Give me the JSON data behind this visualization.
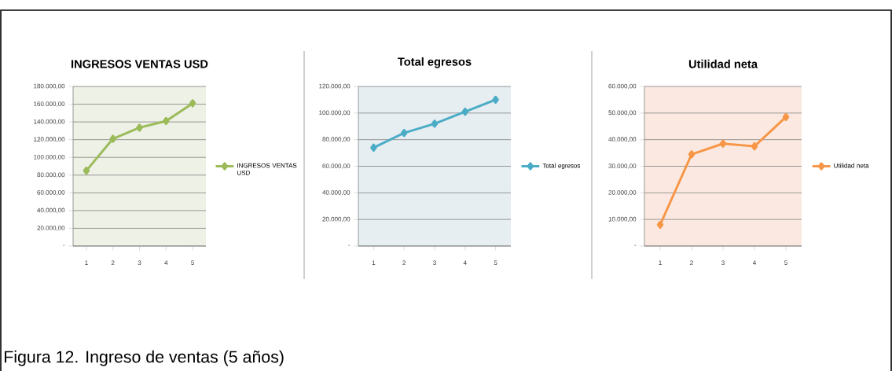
{
  "chart_data": [
    {
      "type": "line",
      "title": "INGRESOS VENTAS  USD",
      "categories": [
        "1",
        "2",
        "3",
        "4",
        "5"
      ],
      "series": [
        {
          "name": "INGRESOS VENTAS USD",
          "color": "#9bbb59",
          "values": [
            85000,
            121000,
            133500,
            141000,
            161000
          ]
        }
      ],
      "ylim": [
        0,
        180000
      ],
      "yticks": [
        {
          "value": 0,
          "label": "-"
        },
        {
          "value": 20000,
          "label": "20.000,00"
        },
        {
          "value": 40000,
          "label": "40.000,00"
        },
        {
          "value": 60000,
          "label": "60.000,00"
        },
        {
          "value": 80000,
          "label": "80.000,00"
        },
        {
          "value": 100000,
          "label": "100.000,00"
        },
        {
          "value": 120000,
          "label": "120.000,00"
        },
        {
          "value": 140000,
          "label": "140.000,00"
        },
        {
          "value": 160000,
          "label": "160.000,00"
        },
        {
          "value": 180000,
          "label": "180.000,00"
        }
      ],
      "grid": "y",
      "legend": "right",
      "marker": "diamond",
      "line_style": "solid",
      "annotations": [
        "Figura 12. Ingreso de ventas (5 años)"
      ]
    },
    {
      "type": "line",
      "title": "Total egresos",
      "categories": [
        "1",
        "2",
        "3",
        "4",
        "5"
      ],
      "series": [
        {
          "name": "Total egresos",
          "color": "#4bacc6",
          "values": [
            74000,
            85000,
            92000,
            101000,
            110000
          ]
        }
      ],
      "ylim": [
        0,
        120000
      ],
      "yticks": [
        {
          "value": 0,
          "label": "-"
        },
        {
          "value": 20000,
          "label": "20.000,00"
        },
        {
          "value": 40000,
          "label": "40.000,00"
        },
        {
          "value": 60000,
          "label": "60.000,00"
        },
        {
          "value": 80000,
          "label": "80.000,00"
        },
        {
          "value": 100000,
          "label": "100.000,00"
        },
        {
          "value": 120000,
          "label": "120.000,00"
        }
      ],
      "grid": "y",
      "legend": "right",
      "marker": "diamond",
      "line_style": "solid"
    },
    {
      "type": "line",
      "title": "Utilidad neta",
      "categories": [
        "1",
        "2",
        "3",
        "4",
        "5"
      ],
      "series": [
        {
          "name": "Utilidad neta",
          "color": "#f79646",
          "values": [
            8000,
            34500,
            38500,
            37500,
            48500
          ]
        }
      ],
      "ylim": [
        0,
        60000
      ],
      "yticks": [
        {
          "value": 0,
          "label": "-"
        },
        {
          "value": 10000,
          "label": "10.000,00"
        },
        {
          "value": 20000,
          "label": "20.000,00"
        },
        {
          "value": 30000,
          "label": "30.000,00"
        },
        {
          "value": 40000,
          "label": "40.000,00"
        },
        {
          "value": 50000,
          "label": "50.000,00"
        },
        {
          "value": 60000,
          "label": "60.000,00"
        }
      ],
      "grid": "y",
      "legend": "right",
      "marker": "diamond",
      "line_style": "solid"
    }
  ]
}
